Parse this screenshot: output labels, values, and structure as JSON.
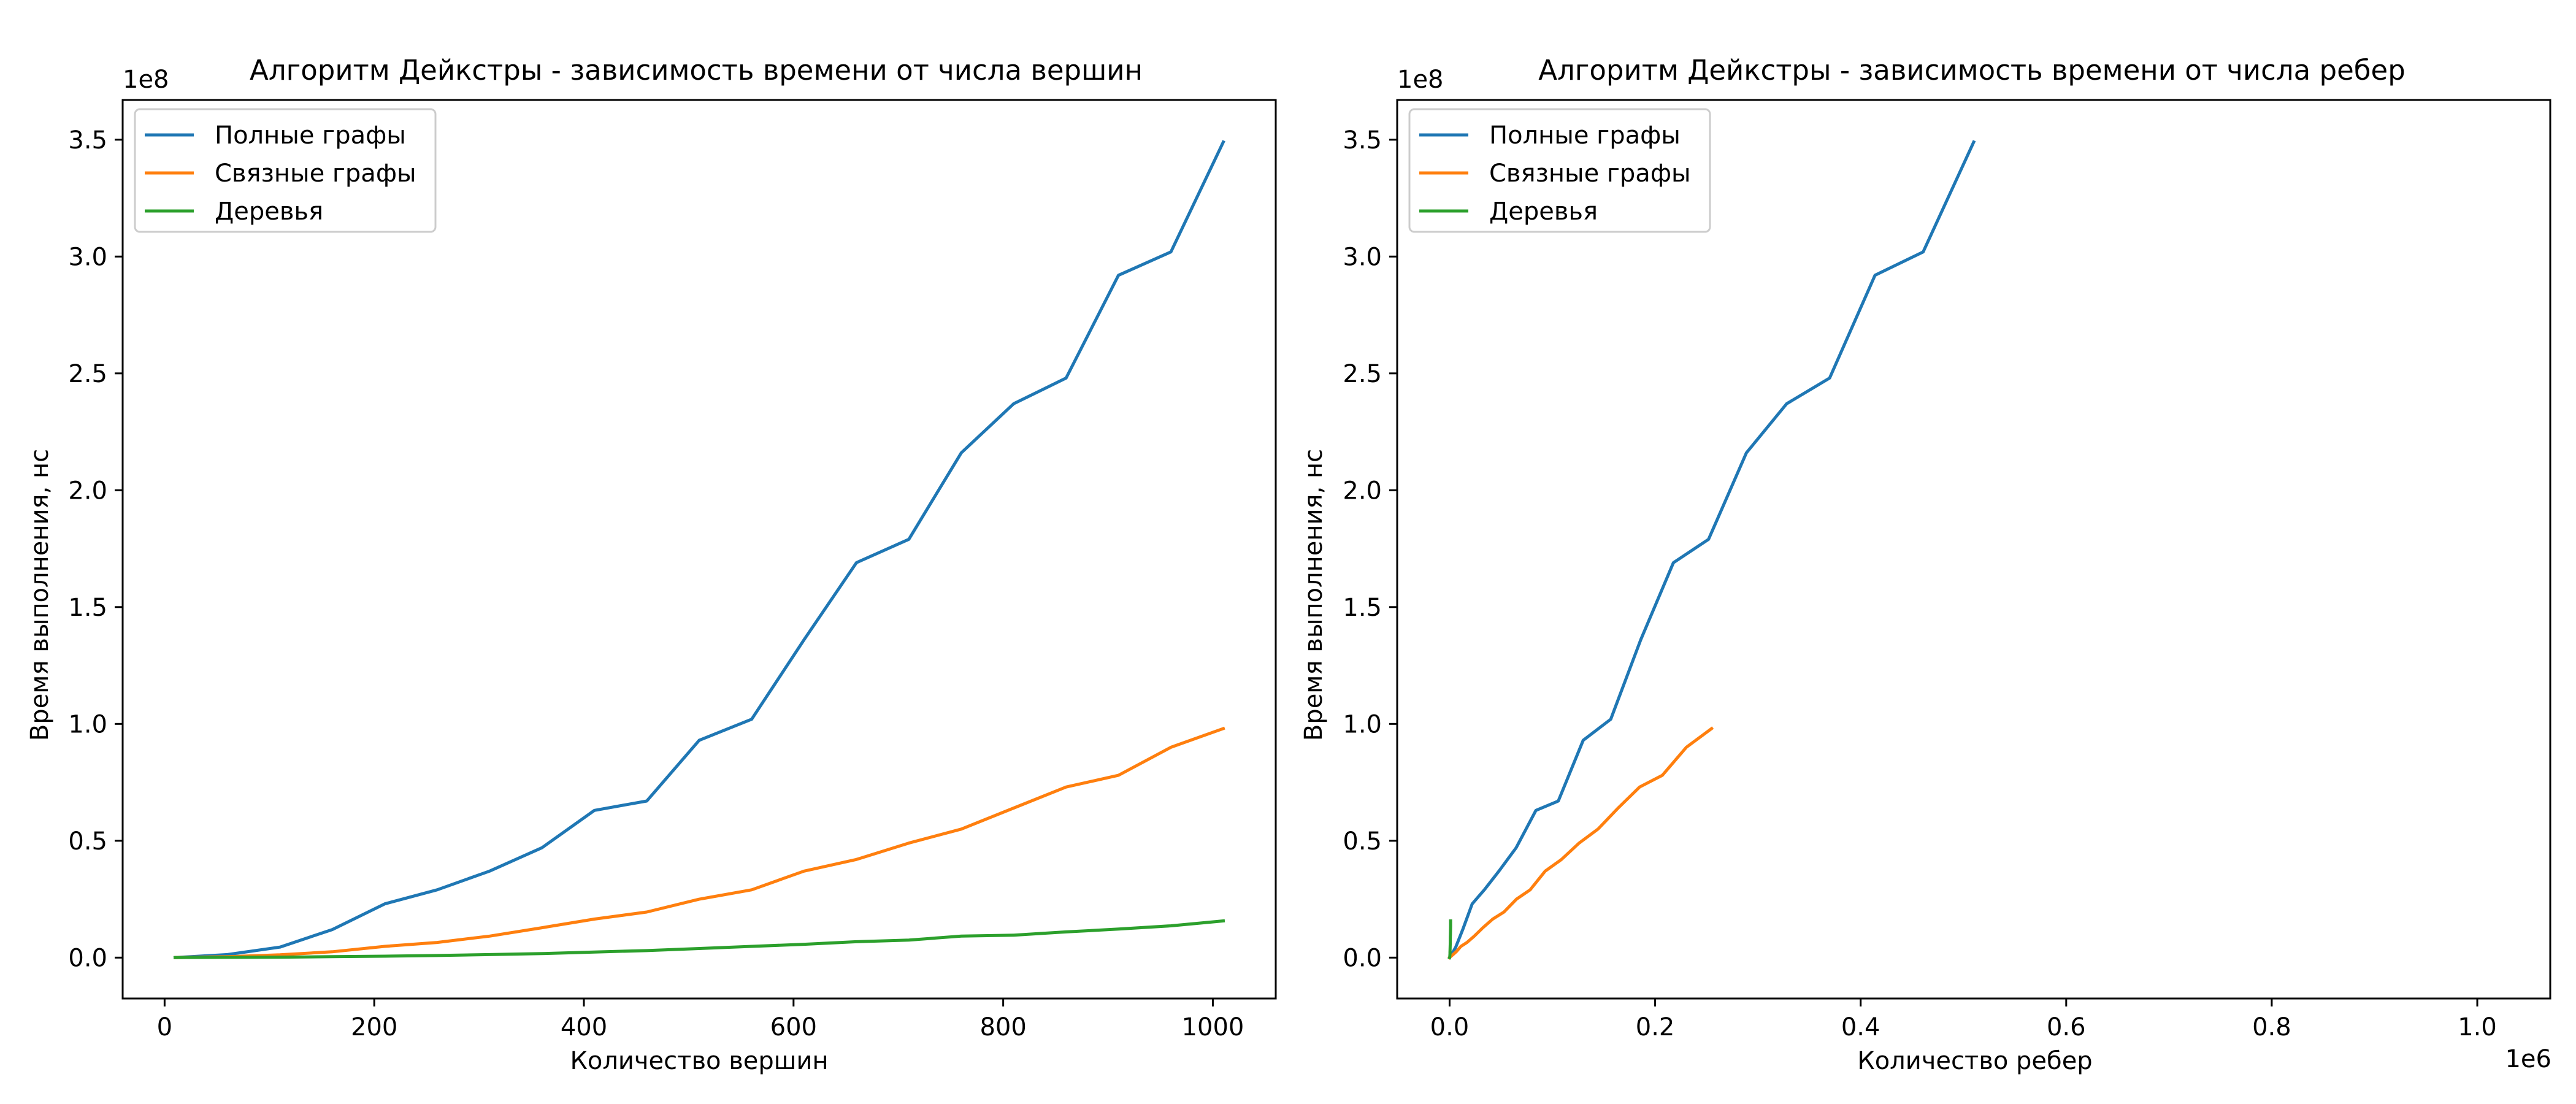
{
  "chart_data": [
    {
      "type": "line",
      "title": "Алгоритм Дейкстры - зависимость времени от числа вершин",
      "xlabel": "Количество вершин",
      "ylabel": "Время выполнения, нс",
      "y_offset_label": "1e8",
      "x_offset_label": "",
      "xlim": [
        -40,
        1060
      ],
      "ylim": [
        -0.175,
        3.67
      ],
      "xticks": [
        0,
        200,
        400,
        600,
        800,
        1000
      ],
      "xtick_labels": [
        "0",
        "200",
        "400",
        "600",
        "800",
        "1000"
      ],
      "yticks": [
        0,
        0.5,
        1.0,
        1.5,
        2.0,
        2.5,
        3.0,
        3.5
      ],
      "ytick_labels": [
        "0.0",
        "0.5",
        "1.0",
        "1.5",
        "2.0",
        "2.5",
        "3.0",
        "3.5"
      ],
      "legend_position": "upper-left",
      "grid": false,
      "series": [
        {
          "name": "Полные графы",
          "color": "#1f77b4",
          "x": [
            10,
            60,
            110,
            160,
            210,
            260,
            310,
            360,
            410,
            460,
            510,
            560,
            610,
            660,
            710,
            760,
            810,
            860,
            910,
            960,
            1010
          ],
          "y": [
            0.0,
            0.013,
            0.045,
            0.12,
            0.23,
            0.29,
            0.37,
            0.47,
            0.63,
            0.67,
            0.93,
            1.02,
            1.36,
            1.69,
            1.79,
            2.16,
            2.37,
            2.48,
            2.92,
            3.02,
            3.49
          ]
        },
        {
          "name": "Связные графы",
          "color": "#ff7f0e",
          "x": [
            10,
            60,
            110,
            160,
            210,
            260,
            310,
            360,
            410,
            460,
            510,
            560,
            610,
            660,
            710,
            760,
            810,
            860,
            910,
            960,
            1010
          ],
          "y": [
            0.0,
            0.004,
            0.012,
            0.025,
            0.048,
            0.065,
            0.092,
            0.128,
            0.165,
            0.195,
            0.25,
            0.29,
            0.37,
            0.42,
            0.49,
            0.55,
            0.64,
            0.73,
            0.78,
            0.9,
            0.98
          ]
        },
        {
          "name": "Деревья",
          "color": "#2ca02c",
          "x": [
            10,
            60,
            110,
            160,
            210,
            260,
            310,
            360,
            410,
            460,
            510,
            560,
            610,
            660,
            710,
            760,
            810,
            860,
            910,
            960,
            1010
          ],
          "y": [
            0.0,
            0.001,
            0.002,
            0.004,
            0.006,
            0.009,
            0.013,
            0.017,
            0.024,
            0.03,
            0.039,
            0.048,
            0.057,
            0.068,
            0.075,
            0.092,
            0.096,
            0.11,
            0.122,
            0.136,
            0.157
          ]
        }
      ]
    },
    {
      "type": "line",
      "title": "Алгоритм Дейкстры - зависимость времени от числа ребер",
      "xlabel": "Количество ребер",
      "ylabel": "Время выполнения, нс",
      "y_offset_label": "1e8",
      "x_offset_label": "1e6",
      "xlim": [
        -0.051,
        1.071
      ],
      "ylim": [
        -0.175,
        3.67
      ],
      "xticks": [
        0,
        0.2,
        0.4,
        0.6,
        0.8,
        1.0
      ],
      "xtick_labels": [
        "0.0",
        "0.2",
        "0.4",
        "0.6",
        "0.8",
        "1.0"
      ],
      "yticks": [
        0,
        0.5,
        1.0,
        1.5,
        2.0,
        2.5,
        3.0,
        3.5
      ],
      "ytick_labels": [
        "0.0",
        "0.5",
        "1.0",
        "1.5",
        "2.0",
        "2.5",
        "3.0",
        "3.5"
      ],
      "legend_position": "upper-left",
      "grid": false,
      "series": [
        {
          "name": "Полные графы",
          "color": "#1f77b4",
          "x": [
            0.0,
            0.0018,
            0.006,
            0.0128,
            0.022,
            0.0338,
            0.048,
            0.0648,
            0.084,
            0.1058,
            0.13,
            0.1568,
            0.186,
            0.2178,
            0.252,
            0.2888,
            0.328,
            0.3698,
            0.414,
            0.4608,
            0.51
          ],
          "y": [
            0.0,
            0.013,
            0.045,
            0.12,
            0.23,
            0.29,
            0.37,
            0.47,
            0.63,
            0.67,
            0.93,
            1.02,
            1.36,
            1.69,
            1.79,
            2.16,
            2.37,
            2.48,
            2.92,
            3.02,
            3.49
          ]
        },
        {
          "name": "Связные графы",
          "color": "#ff7f0e",
          "x": [
            0.0,
            0.0009,
            0.003,
            0.0064,
            0.011,
            0.0169,
            0.024,
            0.0324,
            0.042,
            0.0529,
            0.065,
            0.0784,
            0.093,
            0.1089,
            0.126,
            0.1444,
            0.164,
            0.1849,
            0.207,
            0.2304,
            0.255
          ],
          "y": [
            0.0,
            0.004,
            0.012,
            0.025,
            0.048,
            0.065,
            0.092,
            0.128,
            0.165,
            0.195,
            0.25,
            0.29,
            0.37,
            0.42,
            0.49,
            0.55,
            0.64,
            0.73,
            0.78,
            0.9,
            0.98
          ]
        },
        {
          "name": "Деревья",
          "color": "#2ca02c",
          "x": [
            0.0,
            6e-05,
            0.00011,
            0.00016,
            0.00021,
            0.00026,
            0.00031,
            0.00036,
            0.00041,
            0.00046,
            0.00051,
            0.00056,
            0.00061,
            0.00066,
            0.00071,
            0.00076,
            0.00081,
            0.00086,
            0.00091,
            0.00096,
            0.00101
          ],
          "y": [
            0.0,
            0.001,
            0.002,
            0.004,
            0.006,
            0.009,
            0.013,
            0.017,
            0.024,
            0.03,
            0.039,
            0.048,
            0.057,
            0.068,
            0.075,
            0.092,
            0.096,
            0.11,
            0.122,
            0.136,
            0.157
          ]
        }
      ]
    }
  ]
}
